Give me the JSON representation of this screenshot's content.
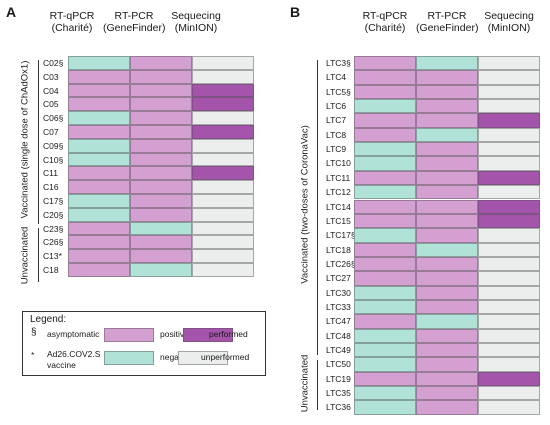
{
  "colors": {
    "positive": "#d49fd1",
    "negative": "#b1e2d8",
    "performed": "#a455ab",
    "unperformed": "#eceeee"
  },
  "panel_a": {
    "letter": "A",
    "headers": [
      [
        "RT-qPCR",
        "(Charité)"
      ],
      [
        "RT-PCR",
        "(GeneFinder)"
      ],
      [
        "Sequecing",
        "(MinION)"
      ]
    ],
    "group_labels": [
      "Vaccinated (single dose of ChAdOx1)",
      "Unvaccinated"
    ],
    "rows": [
      {
        "label": "C02§",
        "cells": [
          "negative",
          "positive",
          "unperformed"
        ]
      },
      {
        "label": "C03",
        "cells": [
          "positive",
          "positive",
          "unperformed"
        ]
      },
      {
        "label": "C04",
        "cells": [
          "positive",
          "positive",
          "performed"
        ]
      },
      {
        "label": "C05",
        "cells": [
          "positive",
          "positive",
          "performed"
        ]
      },
      {
        "label": "C06§",
        "cells": [
          "negative",
          "positive",
          "unperformed"
        ]
      },
      {
        "label": "C07",
        "cells": [
          "positive",
          "positive",
          "performed"
        ]
      },
      {
        "label": "C09§",
        "cells": [
          "negative",
          "positive",
          "unperformed"
        ]
      },
      {
        "label": "C10§",
        "cells": [
          "negative",
          "positive",
          "unperformed"
        ]
      },
      {
        "label": "C11",
        "cells": [
          "positive",
          "positive",
          "performed"
        ]
      },
      {
        "label": "C16",
        "cells": [
          "positive",
          "positive",
          "unperformed"
        ]
      },
      {
        "label": "C17§",
        "cells": [
          "negative",
          "positive",
          "unperformed"
        ]
      },
      {
        "label": "C20§",
        "cells": [
          "negative",
          "positive",
          "unperformed"
        ]
      },
      {
        "label": "C23§",
        "cells": [
          "positive",
          "negative",
          "unperformed"
        ]
      },
      {
        "label": "C26§",
        "cells": [
          "positive",
          "positive",
          "unperformed"
        ]
      },
      {
        "label": "C13*",
        "cells": [
          "positive",
          "positive",
          "unperformed"
        ]
      },
      {
        "label": "C18",
        "cells": [
          "positive",
          "negative",
          "unperformed"
        ]
      }
    ]
  },
  "panel_b": {
    "letter": "B",
    "headers": [
      [
        "RT-qPCR",
        "(Charité)"
      ],
      [
        "RT-PCR",
        "(GeneFinder)"
      ],
      [
        "Sequecing",
        "(MinION)"
      ]
    ],
    "group_labels": [
      "Vaccinated (two-doses of CoronaVac)",
      "Unvaccinated"
    ],
    "rows": [
      {
        "label": "LTC3§",
        "cells": [
          "positive",
          "negative",
          "unperformed"
        ]
      },
      {
        "label": "LTC4",
        "cells": [
          "positive",
          "positive",
          "unperformed"
        ]
      },
      {
        "label": "LTC5§",
        "cells": [
          "positive",
          "positive",
          "unperformed"
        ]
      },
      {
        "label": "LTC6",
        "cells": [
          "negative",
          "positive",
          "unperformed"
        ]
      },
      {
        "label": "LTC7",
        "cells": [
          "positive",
          "positive",
          "performed"
        ]
      },
      {
        "label": "LTC8",
        "cells": [
          "positive",
          "negative",
          "unperformed"
        ]
      },
      {
        "label": "LTC9",
        "cells": [
          "negative",
          "positive",
          "unperformed"
        ]
      },
      {
        "label": "LTC10",
        "cells": [
          "negative",
          "positive",
          "unperformed"
        ]
      },
      {
        "label": "LTC11",
        "cells": [
          "positive",
          "positive",
          "performed"
        ]
      },
      {
        "label": "LTC12",
        "cells": [
          "negative",
          "positive",
          "unperformed"
        ]
      },
      {
        "label": "LTC14",
        "cells": [
          "positive",
          "positive",
          "performed"
        ]
      },
      {
        "label": "LTC15",
        "cells": [
          "positive",
          "positive",
          "performed"
        ]
      },
      {
        "label": "LTC17§",
        "cells": [
          "negative",
          "positive",
          "unperformed"
        ]
      },
      {
        "label": "LTC18",
        "cells": [
          "positive",
          "negative",
          "unperformed"
        ]
      },
      {
        "label": "LTC26§",
        "cells": [
          "positive",
          "positive",
          "unperformed"
        ]
      },
      {
        "label": "LTC27",
        "cells": [
          "positive",
          "positive",
          "unperformed"
        ]
      },
      {
        "label": "LTC30",
        "cells": [
          "negative",
          "positive",
          "unperformed"
        ]
      },
      {
        "label": "LTC33",
        "cells": [
          "negative",
          "positive",
          "unperformed"
        ]
      },
      {
        "label": "LTC47",
        "cells": [
          "positive",
          "negative",
          "unperformed"
        ]
      },
      {
        "label": "LTC48",
        "cells": [
          "negative",
          "positive",
          "unperformed"
        ]
      },
      {
        "label": "LTC49",
        "cells": [
          "negative",
          "positive",
          "unperformed"
        ]
      },
      {
        "label": "LTC50",
        "cells": [
          "negative",
          "positive",
          "unperformed"
        ]
      },
      {
        "label": "LTC19",
        "cells": [
          "positive",
          "positive",
          "performed"
        ]
      },
      {
        "label": "LTC35",
        "cells": [
          "negative",
          "positive",
          "unperformed"
        ]
      },
      {
        "label": "LTC36",
        "cells": [
          "negative",
          "positive",
          "unperformed"
        ]
      }
    ]
  },
  "legend": {
    "title": "Legend:",
    "symbol_1": "§",
    "symbol_1_text": "asymptomatic",
    "symbol_2": "*",
    "symbol_2_text_line1": "Ad26.COV2.S",
    "symbol_2_text_line2": "vaccine",
    "positive": "positive",
    "negative": "negative",
    "performed": "performed",
    "unperformed": "unperformed"
  }
}
